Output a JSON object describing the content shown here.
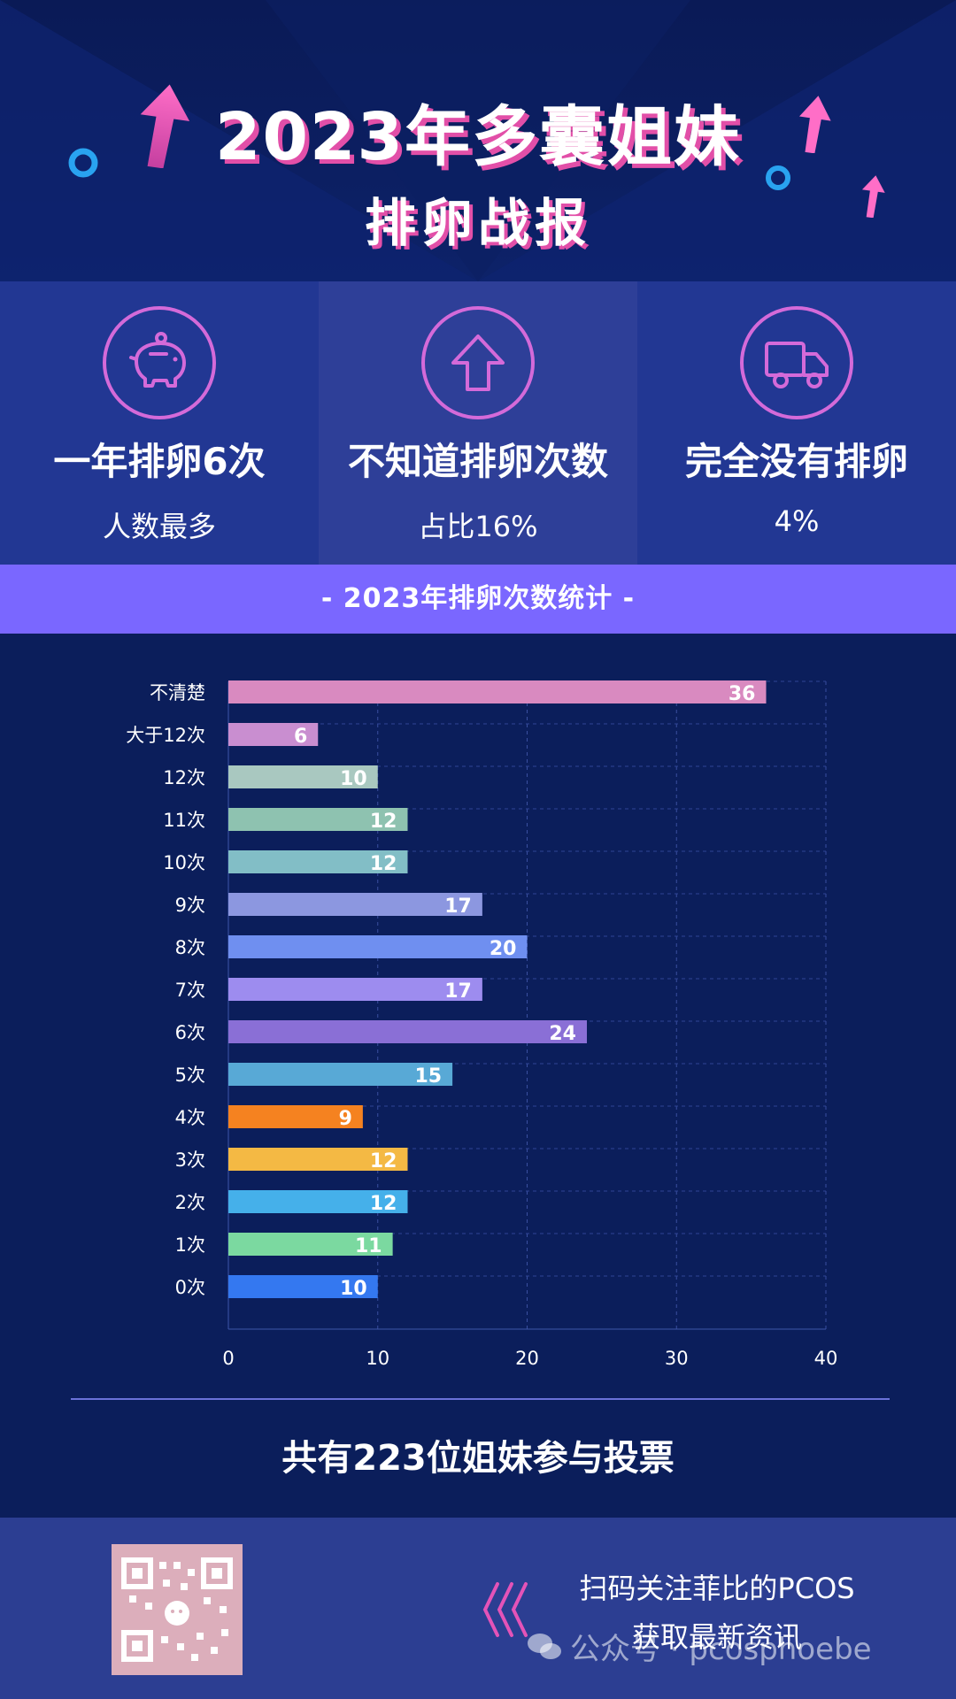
{
  "header": {
    "title_line1": "2023年多囊姐妹",
    "title_line2": "排卵战报"
  },
  "stats": [
    {
      "icon": "piggy-bank-icon",
      "headline": "一年排卵6次",
      "detail": "人数最多"
    },
    {
      "icon": "arrow-up-icon",
      "headline": "不知道排卵次数",
      "detail": "占比16%"
    },
    {
      "icon": "truck-icon",
      "headline": "完全没有排卵",
      "detail": "4%"
    }
  ],
  "band_title": "- 2023年排卵次数统计 -",
  "chart_data": {
    "type": "bar",
    "orientation": "horizontal",
    "categories": [
      "不清楚",
      "大于12次",
      "12次",
      "11次",
      "10次",
      "9次",
      "8次",
      "7次",
      "6次",
      "5次",
      "4次",
      "3次",
      "2次",
      "1次",
      "0次"
    ],
    "values": [
      36,
      6,
      10,
      12,
      12,
      17,
      20,
      17,
      24,
      15,
      9,
      12,
      12,
      11,
      10
    ],
    "colors": [
      "#d98ac0",
      "#c98ed0",
      "#a9c8c0",
      "#8ec2b0",
      "#82bec6",
      "#8c97e0",
      "#6f8ff0",
      "#9d8cef",
      "#8a6fd6",
      "#58a9d6",
      "#f58220",
      "#f4b944",
      "#45b0ea",
      "#7bd9a0",
      "#3478f0"
    ],
    "xlim": [
      0,
      40
    ],
    "xticks": [
      0,
      10,
      20,
      30,
      40
    ],
    "grid": true
  },
  "summary": "共有223位姐妹参与投票",
  "footer": {
    "cta_line1": "扫码关注菲比的PCOS",
    "cta_line2": "获取最新资讯",
    "watermark": "公众号 · pcosphoebe"
  }
}
